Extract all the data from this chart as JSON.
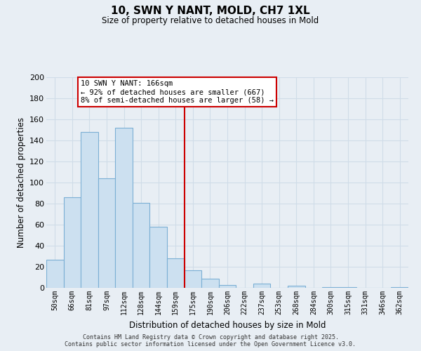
{
  "title": "10, SWN Y NANT, MOLD, CH7 1XL",
  "subtitle": "Size of property relative to detached houses in Mold",
  "xlabel": "Distribution of detached houses by size in Mold",
  "ylabel": "Number of detached properties",
  "bar_labels": [
    "50sqm",
    "66sqm",
    "81sqm",
    "97sqm",
    "112sqm",
    "128sqm",
    "144sqm",
    "159sqm",
    "175sqm",
    "190sqm",
    "206sqm",
    "222sqm",
    "237sqm",
    "253sqm",
    "268sqm",
    "284sqm",
    "300sqm",
    "315sqm",
    "331sqm",
    "346sqm",
    "362sqm"
  ],
  "bar_values": [
    27,
    86,
    148,
    104,
    152,
    81,
    58,
    28,
    17,
    9,
    3,
    0,
    4,
    0,
    2,
    0,
    1,
    1,
    0,
    0,
    1
  ],
  "bar_color": "#cce0f0",
  "bar_edge_color": "#7bafd4",
  "ylim": [
    0,
    200
  ],
  "yticks": [
    0,
    20,
    40,
    60,
    80,
    100,
    120,
    140,
    160,
    180,
    200
  ],
  "vline_x_index": 7.5,
  "annotation_title": "10 SWN Y NANT: 166sqm",
  "annotation_line1": "← 92% of detached houses are smaller (667)",
  "annotation_line2": "8% of semi-detached houses are larger (58) →",
  "annotation_box_color": "#ffffff",
  "annotation_box_edge": "#cc0000",
  "vline_color": "#cc0000",
  "footer1": "Contains HM Land Registry data © Crown copyright and database right 2025.",
  "footer2": "Contains public sector information licensed under the Open Government Licence v3.0.",
  "background_color": "#e8eef4",
  "grid_color": "#d0dce8"
}
